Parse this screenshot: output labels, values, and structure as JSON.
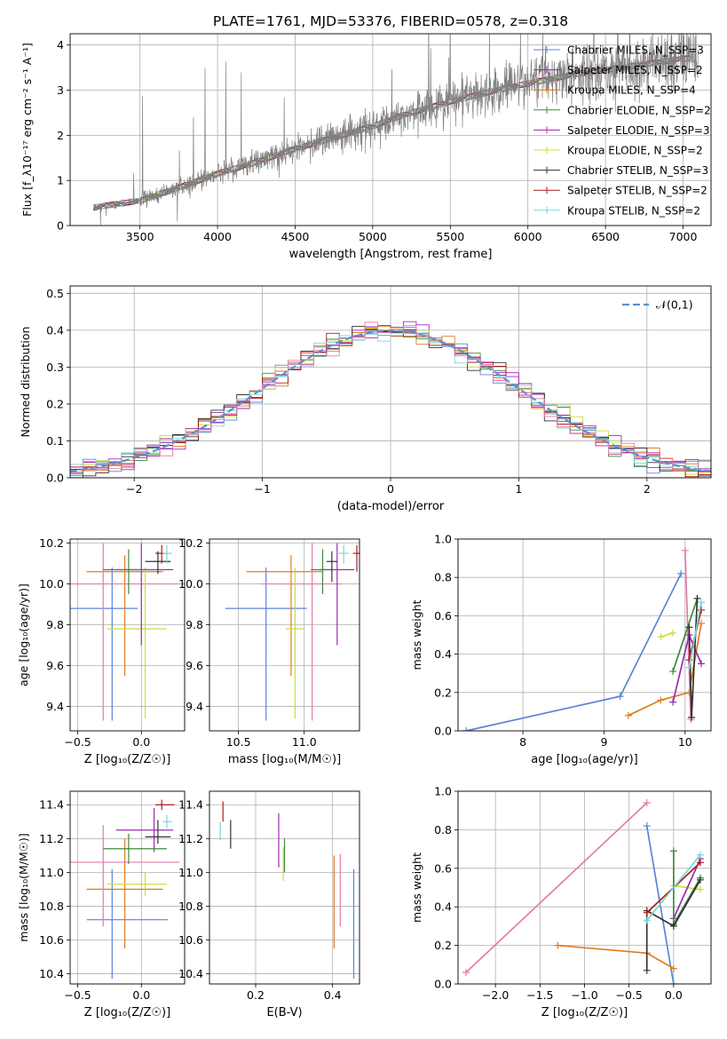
{
  "title": "PLATE=1761, MJD=53376, FIBERID=0578, z=0.318",
  "colors": {
    "chabrier_miles": "#5b84d6",
    "salpeter_miles": "#9b2bb0",
    "kroupa_miles": "#e07b1f",
    "chabrier_elodie": "#3d8a3d",
    "salpeter_elodie": "#b31fb3",
    "kroupa_elodie": "#c6e03a",
    "chabrier_stelib": "#333333",
    "salpeter_stelib": "#b01c1c",
    "kroupa_stelib": "#7ad6d6",
    "pink": "#e67aa8",
    "spectrum": "#808080",
    "normal_curve": "#5b8fd6",
    "grid": "#b0b0b0"
  },
  "chart_data": [
    {
      "id": "spectrum",
      "type": "line",
      "title": "PLATE=1761, MJD=53376, FIBERID=0578, z=0.318",
      "xlabel": "wavelength [Angstrom, rest frame]",
      "ylabel": "Flux [f_λ10⁻¹⁷ erg cm⁻² s⁻¹ A⁻¹]",
      "xlim": [
        3050,
        7180
      ],
      "ylim": [
        0,
        4.25
      ],
      "xticks": [
        3500,
        4000,
        4500,
        5000,
        5500,
        6000,
        6500,
        7000
      ],
      "yticks": [
        0,
        1,
        2,
        3,
        4
      ],
      "grid": true,
      "legend_position": "top-right",
      "legend": [
        {
          "label": "Chabrier MILES, N_SSP=3",
          "color": "#5b84d6"
        },
        {
          "label": "Salpeter MILES, N_SSP=2",
          "color": "#9b2bb0"
        },
        {
          "label": "Kroupa MILES, N_SSP=4",
          "color": "#e07b1f"
        },
        {
          "label": "Chabrier ELODIE, N_SSP=2",
          "color": "#3d8a3d"
        },
        {
          "label": "Salpeter ELODIE, N_SSP=3",
          "color": "#b31fb3"
        },
        {
          "label": "Kroupa ELODIE, N_SSP=2",
          "color": "#c6e03a"
        },
        {
          "label": "Chabrier STELIB, N_SSP=3",
          "color": "#333333"
        },
        {
          "label": "Salpeter STELIB, N_SSP=2",
          "color": "#b01c1c"
        },
        {
          "label": "Kroupa STELIB, N_SSP=2",
          "color": "#7ad6d6"
        }
      ],
      "continuum": {
        "x": [
          3200,
          3500,
          3800,
          4000,
          4200,
          4500,
          4800,
          5000,
          5200,
          5500,
          5800,
          6000,
          6300,
          6600,
          7000
        ],
        "y": [
          0.4,
          0.55,
          0.9,
          1.15,
          1.35,
          1.7,
          2.0,
          2.2,
          2.45,
          2.75,
          3.0,
          3.15,
          3.35,
          3.5,
          3.7
        ]
      }
    },
    {
      "id": "residuals",
      "type": "histogram",
      "xlabel": "(data-model)/error",
      "ylabel": "Normed distribution",
      "xlim": [
        -2.5,
        2.5
      ],
      "ylim": [
        0,
        0.52
      ],
      "xticks": [
        -2,
        -1,
        0,
        1,
        2
      ],
      "yticks": [
        0.0,
        0.1,
        0.2,
        0.3,
        0.4,
        0.5
      ],
      "grid": true,
      "legend_position": "top-right",
      "legend": [
        {
          "label": "𝒩(0,1)",
          "color": "#5b8fd6",
          "style": "dashed"
        }
      ],
      "bin_width": 0.1
    },
    {
      "id": "age_vs_z",
      "type": "errorbar",
      "xlabel": "Z [log₁₀(Z/Z☉)]",
      "ylabel": "age  [log₁₀(age/yr)]",
      "xlim": [
        -0.56,
        0.34
      ],
      "ylim": [
        9.28,
        10.22
      ],
      "xticks": [
        -0.5,
        0.0
      ],
      "yticks": [
        9.4,
        9.6,
        9.8,
        10.0,
        10.2
      ],
      "grid": true,
      "points": [
        {
          "color": "#5b84d6",
          "x": -0.23,
          "y": 9.88,
          "xerr": [
            0.44,
            0.2
          ],
          "yerr": [
            0.55,
            0.2
          ]
        },
        {
          "color": "#e07b1f",
          "x": -0.13,
          "y": 10.06,
          "xerr": [
            0.3,
            0.3
          ],
          "yerr": [
            0.51,
            0.08
          ]
        },
        {
          "color": "#e67aa8",
          "x": -0.3,
          "y": 10.0,
          "xerr": [
            0.26,
            0.6
          ],
          "yerr": [
            0.67,
            0.2
          ]
        },
        {
          "color": "#c6e03a",
          "x": 0.03,
          "y": 9.78,
          "xerr": [
            0.3,
            0.17
          ],
          "yerr": [
            0.44,
            0.3
          ]
        },
        {
          "color": "#9b2bb0",
          "x": 0.0,
          "y": 10.07,
          "xerr": [
            0.2,
            0.25
          ],
          "yerr": [
            0.37,
            0.13
          ]
        },
        {
          "color": "#3d8a3d",
          "x": -0.1,
          "y": 10.07,
          "xerr": [
            0.2,
            0.2
          ],
          "yerr": [
            0.12,
            0.1
          ]
        },
        {
          "color": "#333333",
          "x": 0.13,
          "y": 10.11,
          "xerr": [
            0.1,
            0.1
          ],
          "yerr": [
            0.06,
            0.05
          ]
        },
        {
          "color": "#b01c1c",
          "x": 0.16,
          "y": 10.15,
          "xerr": [
            0.05,
            0.05
          ],
          "yerr": [
            0.05,
            0.04
          ]
        },
        {
          "color": "#7ad6d6",
          "x": 0.2,
          "y": 10.15,
          "xerr": [
            0.03,
            0.04
          ],
          "yerr": [
            0.05,
            0.04
          ]
        }
      ]
    },
    {
      "id": "age_vs_mass",
      "type": "errorbar",
      "xlabel": "mass [log₁₀(M/M☉)]",
      "ylabel": "",
      "xlim": [
        10.28,
        11.42
      ],
      "ylim": [
        9.28,
        10.22
      ],
      "xticks": [
        10.5,
        11.0
      ],
      "yticks": [
        9.4,
        9.6,
        9.8,
        10.0,
        10.2
      ],
      "grid": true,
      "points": [
        {
          "color": "#5b84d6",
          "x": 10.71,
          "y": 9.88,
          "xerr": [
            0.31,
            0.31
          ],
          "yerr": [
            0.55,
            0.2
          ]
        },
        {
          "color": "#e07b1f",
          "x": 10.9,
          "y": 10.06,
          "xerr": [
            0.34,
            0.24
          ],
          "yerr": [
            0.51,
            0.08
          ]
        },
        {
          "color": "#e67aa8",
          "x": 11.06,
          "y": 10.0,
          "xerr": [
            0.38,
            0.22
          ],
          "yerr": [
            0.67,
            0.2
          ]
        },
        {
          "color": "#c6e03a",
          "x": 10.93,
          "y": 9.78,
          "xerr": [
            0.07,
            0.07
          ],
          "yerr": [
            0.44,
            0.3
          ]
        },
        {
          "color": "#9b2bb0",
          "x": 11.25,
          "y": 10.07,
          "xerr": [
            0.13,
            0.13
          ],
          "yerr": [
            0.37,
            0.13
          ]
        },
        {
          "color": "#3d8a3d",
          "x": 11.14,
          "y": 10.07,
          "xerr": [
            0.09,
            0.09
          ],
          "yerr": [
            0.12,
            0.1
          ]
        },
        {
          "color": "#333333",
          "x": 11.21,
          "y": 10.11,
          "xerr": [
            0.04,
            0.04
          ],
          "yerr": [
            0.1,
            0.05
          ]
        },
        {
          "color": "#b01c1c",
          "x": 11.4,
          "y": 10.15,
          "xerr": [
            0.03,
            0.03
          ],
          "yerr": [
            0.09,
            0.04
          ]
        },
        {
          "color": "#7ad6d6",
          "x": 11.3,
          "y": 10.15,
          "xerr": [
            0.04,
            0.04
          ],
          "yerr": [
            0.05,
            0.04
          ]
        }
      ]
    },
    {
      "id": "weight_vs_age",
      "type": "line",
      "xlabel": "age  [log₁₀(age/yr)]",
      "ylabel": "mass weight",
      "xlim": [
        7.2,
        10.32
      ],
      "ylim": [
        0,
        1.0
      ],
      "xticks": [
        8,
        9,
        10
      ],
      "yticks": [
        0.0,
        0.2,
        0.4,
        0.6,
        0.8,
        1.0
      ],
      "grid": true,
      "series": [
        {
          "color": "#5b84d6",
          "x": [
            7.3,
            9.2,
            9.95
          ],
          "y": [
            0.0,
            0.18,
            0.82
          ]
        },
        {
          "color": "#e07b1f",
          "x": [
            9.3,
            9.7,
            10.05,
            10.2
          ],
          "y": [
            0.08,
            0.16,
            0.2,
            0.56
          ]
        },
        {
          "color": "#e67aa8",
          "x": [
            10.0,
            10.07
          ],
          "y": [
            0.94,
            0.06
          ]
        },
        {
          "color": "#c6e03a",
          "x": [
            9.7,
            9.85
          ],
          "y": [
            0.49,
            0.51
          ]
        },
        {
          "color": "#9b2bb0",
          "x": [
            9.85,
            10.05,
            10.2
          ],
          "y": [
            0.15,
            0.5,
            0.35
          ]
        },
        {
          "color": "#3d8a3d",
          "x": [
            9.85,
            10.15
          ],
          "y": [
            0.31,
            0.69
          ]
        },
        {
          "color": "#333333",
          "x": [
            10.05,
            10.08,
            10.15
          ],
          "y": [
            0.54,
            0.07,
            0.69
          ]
        },
        {
          "color": "#b01c1c",
          "x": [
            10.05,
            10.2
          ],
          "y": [
            0.37,
            0.63
          ]
        },
        {
          "color": "#7ad6d6",
          "x": [
            10.05,
            10.2
          ],
          "y": [
            0.33,
            0.67
          ]
        }
      ]
    },
    {
      "id": "mass_vs_z",
      "type": "errorbar",
      "xlabel": "Z [log₁₀(Z/Z☉)]",
      "ylabel": "mass [log₁₀(M/M☉)]",
      "xlim": [
        -0.56,
        0.34
      ],
      "ylim": [
        10.34,
        11.48
      ],
      "xticks": [
        -0.5,
        0.0
      ],
      "yticks": [
        10.4,
        10.6,
        10.8,
        11.0,
        11.2,
        11.4
      ],
      "grid": true,
      "points": [
        {
          "color": "#5b84d6",
          "x": -0.23,
          "y": 10.72,
          "xerr": [
            0.2,
            0.44
          ],
          "yerr": [
            0.35,
            0.3
          ]
        },
        {
          "color": "#e07b1f",
          "x": -0.13,
          "y": 10.9,
          "xerr": [
            0.3,
            0.3
          ],
          "yerr": [
            0.35,
            0.3
          ]
        },
        {
          "color": "#e67aa8",
          "x": -0.3,
          "y": 11.06,
          "xerr": [
            0.26,
            0.6
          ],
          "yerr": [
            0.38,
            0.22
          ]
        },
        {
          "color": "#c6e03a",
          "x": 0.03,
          "y": 10.93,
          "xerr": [
            0.3,
            0.17
          ],
          "yerr": [
            0.07,
            0.07
          ]
        },
        {
          "color": "#9b2bb0",
          "x": 0.1,
          "y": 11.25,
          "xerr": [
            0.3,
            0.15
          ],
          "yerr": [
            0.13,
            0.13
          ]
        },
        {
          "color": "#3d8a3d",
          "x": -0.1,
          "y": 11.14,
          "xerr": [
            0.2,
            0.3
          ],
          "yerr": [
            0.09,
            0.09
          ]
        },
        {
          "color": "#333333",
          "x": 0.13,
          "y": 11.21,
          "xerr": [
            0.1,
            0.1
          ],
          "yerr": [
            0.04,
            0.1
          ]
        },
        {
          "color": "#b01c1c",
          "x": 0.16,
          "y": 11.4,
          "xerr": [
            0.05,
            0.1
          ],
          "yerr": [
            0.03,
            0.03
          ]
        },
        {
          "color": "#7ad6d6",
          "x": 0.2,
          "y": 11.3,
          "xerr": [
            0.03,
            0.04
          ],
          "yerr": [
            0.04,
            0.04
          ]
        }
      ]
    },
    {
      "id": "mass_vs_ebv",
      "type": "errorbar",
      "xlabel": "E(B-V)",
      "ylabel": "",
      "xlim": [
        0.08,
        0.47
      ],
      "ylim": [
        10.34,
        11.48
      ],
      "xticks": [
        0.2,
        0.4
      ],
      "yticks": [
        10.4,
        10.6,
        10.8,
        11.0,
        11.2,
        11.4
      ],
      "grid": true,
      "points": [
        {
          "color": "#5b84d6",
          "x": 0.455,
          "y": 10.72,
          "xerr": [
            0,
            0
          ],
          "yerr": [
            0.35,
            0.3
          ]
        },
        {
          "color": "#e07b1f",
          "x": 0.404,
          "y": 10.9,
          "xerr": [
            0,
            0
          ],
          "yerr": [
            0.35,
            0.2
          ]
        },
        {
          "color": "#e67aa8",
          "x": 0.42,
          "y": 11.06,
          "xerr": [
            0,
            0
          ],
          "yerr": [
            0.38,
            0.05
          ]
        },
        {
          "color": "#c6e03a",
          "x": 0.272,
          "y": 11.05,
          "xerr": [
            0,
            0
          ],
          "yerr": [
            0.1,
            0.1
          ]
        },
        {
          "color": "#9b2bb0",
          "x": 0.26,
          "y": 11.2,
          "xerr": [
            0,
            0
          ],
          "yerr": [
            0.17,
            0.15
          ]
        },
        {
          "color": "#3d8a3d",
          "x": 0.275,
          "y": 11.1,
          "xerr": [
            0,
            0
          ],
          "yerr": [
            0.1,
            0.1
          ]
        },
        {
          "color": "#333333",
          "x": 0.135,
          "y": 11.22,
          "xerr": [
            0,
            0
          ],
          "yerr": [
            0.08,
            0.09
          ]
        },
        {
          "color": "#b01c1c",
          "x": 0.115,
          "y": 11.35,
          "xerr": [
            0,
            0
          ],
          "yerr": [
            0.05,
            0.07
          ]
        },
        {
          "color": "#7ad6d6",
          "x": 0.108,
          "y": 11.24,
          "xerr": [
            0,
            0
          ],
          "yerr": [
            0.05,
            0.06
          ]
        }
      ]
    },
    {
      "id": "weight_vs_z",
      "type": "line",
      "xlabel": "Z [log₁₀(Z/Z☉)]",
      "ylabel": "mass weight",
      "xlim": [
        -2.42,
        0.42
      ],
      "ylim": [
        0,
        1.0
      ],
      "xticks": [
        -2.0,
        -1.5,
        -1.0,
        -0.5,
        0.0
      ],
      "yticks": [
        0.0,
        0.2,
        0.4,
        0.6,
        0.8,
        1.0
      ],
      "grid": true,
      "series": [
        {
          "color": "#e67aa8",
          "x": [
            -2.33,
            -0.3
          ],
          "y": [
            0.06,
            0.94
          ]
        },
        {
          "color": "#5b84d6",
          "x": [
            -0.3,
            0.0
          ],
          "y": [
            0.82,
            0.0
          ]
        },
        {
          "color": "#e07b1f",
          "x": [
            -1.3,
            -0.3,
            0.0
          ],
          "y": [
            0.2,
            0.16,
            0.08
          ]
        },
        {
          "color": "#c6e03a",
          "x": [
            0.0,
            0.3
          ],
          "y": [
            0.51,
            0.49
          ]
        },
        {
          "color": "#9b2bb0",
          "x": [
            0.0,
            0.3
          ],
          "y": [
            0.34,
            0.65
          ]
        },
        {
          "color": "#3d8a3d",
          "x": [
            0.0,
            0.0,
            0.3
          ],
          "y": [
            0.69,
            0.31,
            0.55
          ]
        },
        {
          "color": "#333333",
          "x": [
            -0.3,
            -0.3,
            0.0,
            0.3
          ],
          "y": [
            0.07,
            0.38,
            0.3,
            0.54
          ]
        },
        {
          "color": "#b01c1c",
          "x": [
            -0.3,
            0.3
          ],
          "y": [
            0.37,
            0.63
          ]
        },
        {
          "color": "#7ad6d6",
          "x": [
            -0.3,
            0.3
          ],
          "y": [
            0.33,
            0.67
          ]
        }
      ]
    }
  ]
}
